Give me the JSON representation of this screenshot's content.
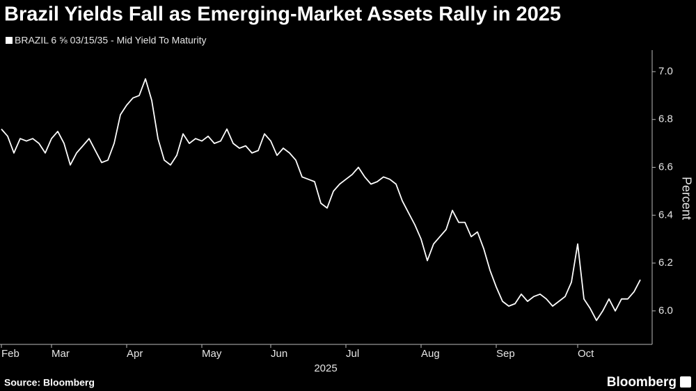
{
  "chart_data": {
    "type": "line",
    "title": "Brazil Yields Fall as Emerging-Market Assets Rally in 2025",
    "x_label": "2025",
    "y_label": "Percent",
    "source": "Source: Bloomberg",
    "brand": "Bloomberg",
    "categories": [
      "Feb",
      null,
      null,
      null,
      null,
      null,
      null,
      null,
      "Mar",
      null,
      null,
      null,
      null,
      null,
      null,
      null,
      null,
      null,
      null,
      null,
      "Apr",
      null,
      null,
      null,
      null,
      null,
      null,
      null,
      null,
      null,
      null,
      null,
      "May",
      null,
      null,
      null,
      null,
      null,
      null,
      null,
      null,
      null,
      null,
      "Jun",
      null,
      null,
      null,
      null,
      null,
      null,
      null,
      null,
      null,
      null,
      null,
      "Jul",
      null,
      null,
      null,
      null,
      null,
      null,
      null,
      null,
      null,
      null,
      null,
      "Aug",
      null,
      null,
      null,
      null,
      null,
      null,
      null,
      null,
      null,
      null,
      null,
      "Sep",
      null,
      null,
      null,
      null,
      null,
      null,
      null,
      null,
      null,
      null,
      null,
      null,
      "Oct",
      null,
      null,
      null,
      null,
      null,
      null,
      null,
      null,
      null,
      null
    ],
    "series": [
      {
        "name": "BRAZIL 6 ⅝ 03/15/35 - Mid Yield To Maturity",
        "color": "#ffffff",
        "values": [
          6.76,
          6.73,
          6.66,
          6.72,
          6.71,
          6.72,
          6.7,
          6.66,
          6.72,
          6.75,
          6.7,
          6.61,
          6.66,
          6.69,
          6.72,
          6.67,
          6.62,
          6.63,
          6.7,
          6.82,
          6.86,
          6.89,
          6.9,
          6.97,
          6.88,
          6.72,
          6.63,
          6.61,
          6.65,
          6.74,
          6.7,
          6.72,
          6.71,
          6.73,
          6.7,
          6.71,
          6.76,
          6.7,
          6.68,
          6.69,
          6.66,
          6.67,
          6.74,
          6.71,
          6.65,
          6.68,
          6.66,
          6.63,
          6.56,
          6.55,
          6.54,
          6.45,
          6.43,
          6.5,
          6.53,
          6.55,
          6.57,
          6.6,
          6.56,
          6.53,
          6.54,
          6.56,
          6.55,
          6.53,
          6.46,
          6.41,
          6.36,
          6.3,
          6.21,
          6.28,
          6.31,
          6.34,
          6.42,
          6.37,
          6.37,
          6.31,
          6.33,
          6.26,
          6.17,
          6.1,
          6.04,
          6.02,
          6.03,
          6.07,
          6.04,
          6.06,
          6.07,
          6.05,
          6.02,
          6.04,
          6.06,
          6.12,
          6.28,
          6.05,
          6.01,
          5.96,
          6.0,
          6.05,
          6.0,
          6.05,
          6.05,
          6.08,
          6.13
        ]
      }
    ],
    "ylim": [
      5.86,
      7.09
    ],
    "yticks": [
      {
        "value": 6,
        "label": "6.0"
      },
      6.2,
      6.4,
      6.6,
      6.8,
      {
        "value": 7,
        "label": "7.0"
      }
    ],
    "grid": false,
    "legend": "top-left"
  }
}
